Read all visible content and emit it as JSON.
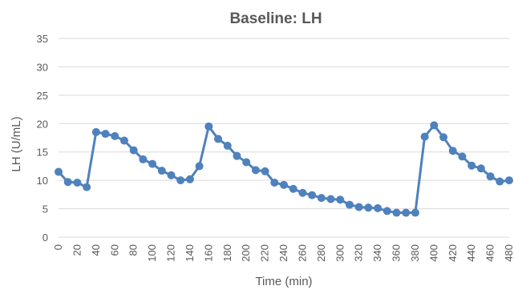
{
  "chart_data": {
    "type": "line",
    "title": "Baseline: LH",
    "xlabel": "Time (min)",
    "ylabel": "LH (U/mL)",
    "ylim": [
      0,
      35
    ],
    "yticks": [
      0,
      5,
      10,
      15,
      20,
      25,
      30,
      35
    ],
    "xlim": [
      0,
      480
    ],
    "xticks": [
      0,
      20,
      40,
      60,
      80,
      100,
      120,
      140,
      160,
      180,
      200,
      220,
      240,
      260,
      280,
      300,
      320,
      340,
      360,
      380,
      400,
      420,
      440,
      460,
      480
    ],
    "grid": "horizontal",
    "legend": "none",
    "colors": {
      "series": "#4f81bd",
      "grid": "#d9d9d9",
      "text": "#595959"
    },
    "series": [
      {
        "x": [
          0,
          10,
          20,
          30,
          40,
          50,
          60,
          70,
          80,
          90,
          100,
          110,
          120,
          130,
          140,
          150,
          160,
          170,
          180,
          190,
          200,
          210,
          220,
          230,
          240,
          250,
          260,
          270,
          280,
          290,
          300,
          310,
          320,
          330,
          340,
          350,
          360,
          370,
          380,
          390,
          400,
          410,
          420,
          430,
          440,
          450,
          460,
          470,
          480
        ],
        "values": [
          11.5,
          9.7,
          9.6,
          8.8,
          18.5,
          18.2,
          17.8,
          17.0,
          15.3,
          13.7,
          12.9,
          11.7,
          10.9,
          10.0,
          10.2,
          12.5,
          19.5,
          17.3,
          16.1,
          14.3,
          13.2,
          11.8,
          11.6,
          9.6,
          9.2,
          8.5,
          7.8,
          7.4,
          6.9,
          6.7,
          6.6,
          5.7,
          5.3,
          5.2,
          5.1,
          4.6,
          4.3,
          4.3,
          4.3,
          17.7,
          19.7,
          17.6,
          15.2,
          14.2,
          12.6,
          12.1,
          10.7,
          9.8,
          10.0
        ]
      }
    ]
  }
}
